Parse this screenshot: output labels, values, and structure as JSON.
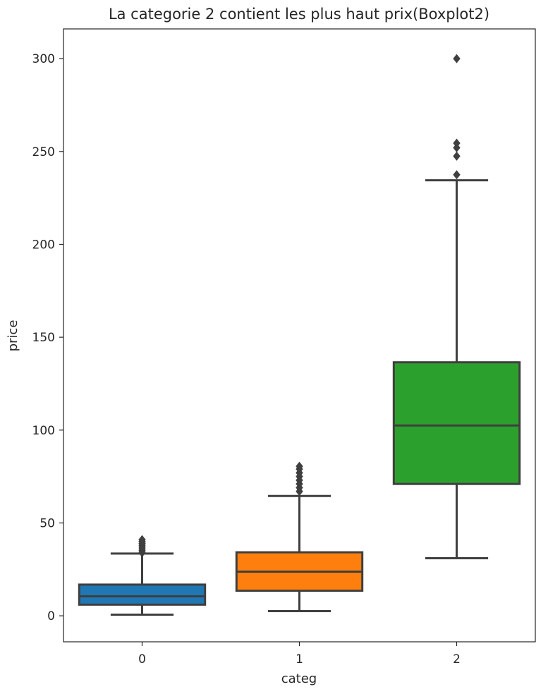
{
  "chart_data": {
    "type": "boxplot",
    "title": "La categorie 2 contient les plus haut prix(Boxplot2)",
    "xlabel": "categ",
    "ylabel": "price",
    "ylim": [
      -14,
      316
    ],
    "yticks": [
      0,
      50,
      100,
      150,
      200,
      250,
      300
    ],
    "grid": false,
    "categories": [
      "0",
      "1",
      "2"
    ],
    "boxes": [
      {
        "category": "0",
        "color": "#1f77b4",
        "whisker_low": 0.6,
        "q1": 6.0,
        "median": 10.5,
        "q3": 16.8,
        "whisker_high": 33.5,
        "outliers": [
          34.0,
          35.0,
          36.0,
          37.0,
          38.0,
          39.0,
          40.0,
          41.0
        ]
      },
      {
        "category": "1",
        "color": "#ff7f0e",
        "whisker_low": 2.5,
        "q1": 13.5,
        "median": 23.8,
        "q3": 34.2,
        "whisker_high": 64.5,
        "outliers": [
          67.0,
          69.0,
          71.0,
          73.0,
          75.0,
          77.0,
          79.0,
          80.5
        ]
      },
      {
        "category": "2",
        "color": "#2ca02c",
        "whisker_low": 31.0,
        "q1": 71.0,
        "median": 102.5,
        "q3": 136.5,
        "whisker_high": 234.5,
        "outliers": [
          237.5,
          247.5,
          252.0,
          254.5,
          300.0
        ]
      }
    ]
  }
}
